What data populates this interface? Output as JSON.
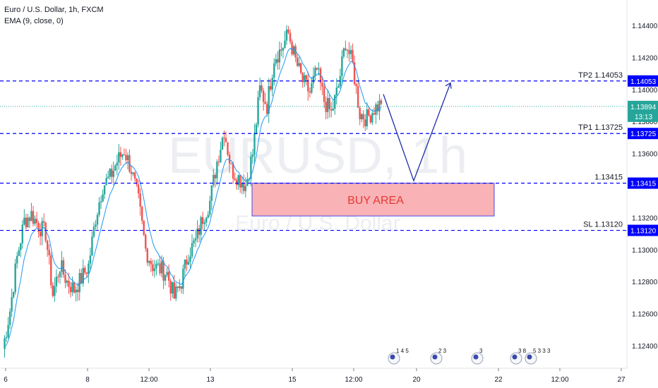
{
  "symbol_title": "Euro / U.S. Dollar, 1h, FXCM",
  "indicator_label": "EMA (9, close, 0)",
  "watermark": {
    "ticker": "EURUSD, 1h",
    "name": "Euro / U.S. Dollar"
  },
  "colors": {
    "up": "#26a69a",
    "down": "#ef5350",
    "ema": "#2196f3",
    "level_line": "#0000ff",
    "level_tag": "#0000ff",
    "current_tag": "#26a69a",
    "buy_area_fill": "#f8a5a8",
    "buy_area_border": "#4a4ae0",
    "buy_area_text": "#e53935",
    "arrow": "#1f2fa8"
  },
  "chart_data": {
    "type": "candlestick",
    "y_axis": {
      "ylim": [
        1.1232,
        1.1452
      ],
      "ticks": [
        "1.12400",
        "1.12600",
        "1.12800",
        "1.13000",
        "1.13200",
        "1.13400",
        "1.13600",
        "1.13800",
        "1.14000",
        "1.14200",
        "1.14400"
      ]
    },
    "x_axis": {
      "ticks": [
        "6",
        "8",
        "12:00",
        "13",
        "15",
        "12:00",
        "20",
        "22",
        "12:00",
        "27"
      ]
    },
    "series_approx_close": [
      1.1238,
      1.1262,
      1.1295,
      1.1318,
      1.1322,
      1.1315,
      1.131,
      1.1272,
      1.129,
      1.128,
      1.1275,
      1.1282,
      1.129,
      1.132,
      1.134,
      1.1345,
      1.1355,
      1.1362,
      1.135,
      1.133,
      1.13,
      1.129,
      1.1288,
      1.1285,
      1.127,
      1.128,
      1.1298,
      1.1305,
      1.132,
      1.133,
      1.1355,
      1.1375,
      1.135,
      1.1345,
      1.134,
      1.136,
      1.14,
      1.139,
      1.142,
      1.1425,
      1.1435,
      1.1418,
      1.1405,
      1.1398,
      1.1412,
      1.1393,
      1.1385,
      1.1402,
      1.143,
      1.1415,
      1.1385,
      1.1382,
      1.1388,
      1.1391
    ],
    "ema_label": "EMA (9, close, 0)",
    "current_price": "1.13894",
    "countdown": "13:13",
    "levels": [
      {
        "label": "TP2 1.14053",
        "price": 1.14053,
        "tag": "1.14053"
      },
      {
        "label": "TP1 1.13725",
        "price": 1.13725,
        "tag": "1.13725"
      },
      {
        "label": "1.13415",
        "price": 1.13415,
        "tag": "1.13415"
      },
      {
        "label": "SL 1.13120",
        "price": 1.1312,
        "tag": "1.13120"
      }
    ],
    "buy_area": {
      "label": "BUY AREA",
      "top_price": 1.13415,
      "bottom_price": 1.1321
    },
    "projection_path": [
      [
        1.1397,
        "x0"
      ],
      [
        1.1343,
        "x1"
      ],
      [
        1.1404,
        "x2"
      ]
    ],
    "event_badges": [
      "1 4 5",
      "2 3",
      "3",
      "3 8",
      "5 3 3 3"
    ]
  }
}
